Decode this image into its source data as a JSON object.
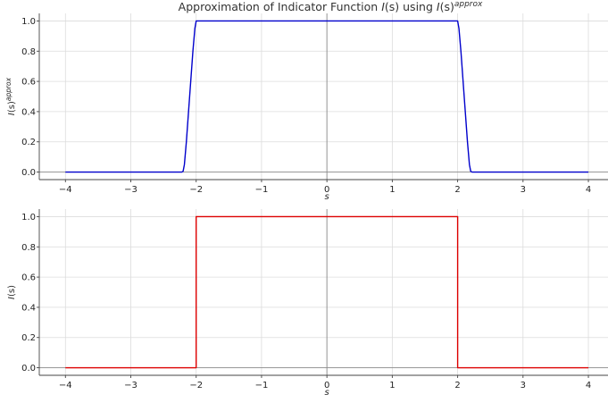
{
  "title": {
    "prefix": "Approximation of Indicator Function ",
    "i": "I",
    "mid": "(s) using ",
    "i2": "I",
    "mid2": "(s)",
    "sup": "approx"
  },
  "chart_data": [
    {
      "type": "line",
      "xlabel": "s",
      "ylabel": "I(s)^approx",
      "ylabel_parts": {
        "i": "I",
        "body": "(s)",
        "sup": "approx"
      },
      "xlim": [
        -4.4,
        4.3
      ],
      "ylim": [
        -0.05,
        1.05
      ],
      "x_ticks": [
        -4,
        -3,
        -2,
        -1,
        0,
        1,
        2,
        3,
        4
      ],
      "x_tick_labels": [
        "−4",
        "−3",
        "−2",
        "−1",
        "0",
        "1",
        "2",
        "3",
        "4"
      ],
      "y_ticks": [
        0.0,
        0.2,
        0.4,
        0.6,
        0.8,
        1.0
      ],
      "y_tick_labels": [
        "0.0",
        "0.2",
        "0.4",
        "0.6",
        "0.8",
        "1.0"
      ],
      "grid": true,
      "color": "#0000cc",
      "series": [
        {
          "x": [
            -4,
            -2.22,
            -2.2,
            -2.18,
            -2.15,
            -2.1,
            -2.05,
            -2.02,
            -2.0,
            2.0,
            2.02,
            2.05,
            2.1,
            2.15,
            2.18,
            2.2,
            2.22,
            4
          ],
          "values": [
            0,
            0,
            0.005,
            0.05,
            0.2,
            0.5,
            0.8,
            0.95,
            1.0,
            1.0,
            0.95,
            0.8,
            0.5,
            0.2,
            0.05,
            0.005,
            0,
            0
          ]
        }
      ]
    },
    {
      "type": "line",
      "xlabel": "s",
      "ylabel": "I(s)",
      "ylabel_parts": {
        "i": "I",
        "body": "(s)",
        "sup": ""
      },
      "xlim": [
        -4.4,
        4.3
      ],
      "ylim": [
        -0.05,
        1.05
      ],
      "x_ticks": [
        -4,
        -3,
        -2,
        -1,
        0,
        1,
        2,
        3,
        4
      ],
      "x_tick_labels": [
        "−4",
        "−3",
        "−2",
        "−1",
        "0",
        "1",
        "2",
        "3",
        "4"
      ],
      "y_ticks": [
        0.0,
        0.2,
        0.4,
        0.6,
        0.8,
        1.0
      ],
      "y_tick_labels": [
        "0.0",
        "0.2",
        "0.4",
        "0.6",
        "0.8",
        "1.0"
      ],
      "grid": true,
      "color": "#dd0000",
      "series": [
        {
          "x": [
            -4,
            -2.0,
            -2.0,
            2.0,
            2.0,
            4
          ],
          "values": [
            0,
            0,
            1,
            1,
            0,
            0
          ]
        }
      ]
    }
  ]
}
